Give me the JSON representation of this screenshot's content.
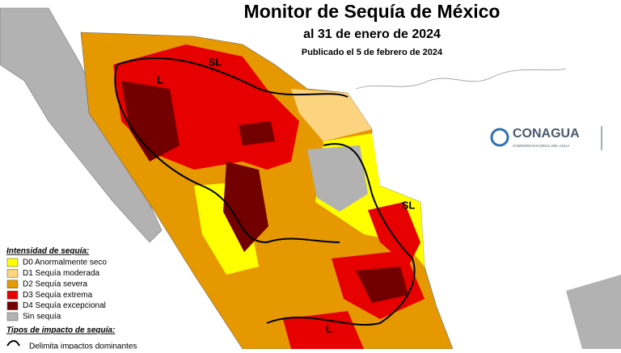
{
  "header": {
    "title": "Monitor de Sequía de México",
    "date": "al 31 de enero de 2024",
    "published": "Publicado el 5 de febrero de 2024"
  },
  "legend": {
    "title": "Intensidad de sequía:",
    "items": [
      {
        "label": "D0 Anormalmente seco",
        "color": "#ffff00"
      },
      {
        "label": "D1 Sequía moderada",
        "color": "#fcd37f"
      },
      {
        "label": "D2 Sequía severa",
        "color": "#e69800"
      },
      {
        "label": "D3 Sequía extrema",
        "color": "#e60000"
      },
      {
        "label": "D4 Sequía excepcional",
        "color": "#730000"
      },
      {
        "label": "Sin sequía",
        "color": "#b2b2b2"
      }
    ],
    "impact_title": "Tipos de impacto de sequía:",
    "impact_item": "Delimita impactos dominantes"
  },
  "map_labels": [
    "L",
    "SL",
    "SL",
    "L"
  ],
  "logo": {
    "name": "CONAGUA",
    "subtitle": "COMISIÓN NACIONAL DEL AGUA"
  }
}
